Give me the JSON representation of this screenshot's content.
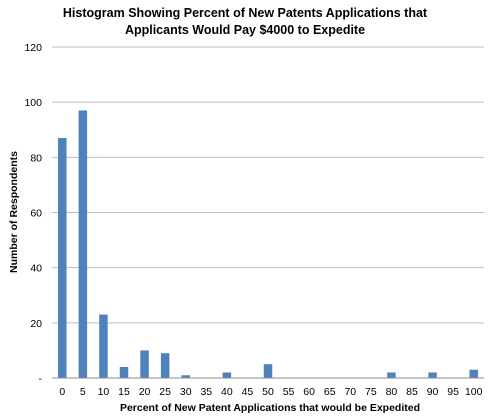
{
  "chart_data": {
    "type": "bar",
    "title_lines": [
      "Histogram Showing Percent of New Patents Applications that",
      "Applicants Would Pay $4000 to Expedite"
    ],
    "xlabel": "Percent of New Patent Applications that would be Expedited",
    "ylabel": "Number of Respondents",
    "categories": [
      "0",
      "5",
      "10",
      "15",
      "20",
      "25",
      "30",
      "35",
      "40",
      "45",
      "50",
      "55",
      "60",
      "65",
      "70",
      "75",
      "80",
      "85",
      "90",
      "95",
      "100"
    ],
    "values": [
      87,
      97,
      23,
      4,
      10,
      9,
      1,
      0,
      2,
      0,
      5,
      0,
      0,
      0,
      0,
      0,
      2,
      0,
      2,
      0,
      3
    ],
    "ylim": [
      0,
      120
    ],
    "yticks": [
      "-",
      "20",
      "40",
      "60",
      "80",
      "100",
      "120"
    ],
    "grid": true,
    "legend": "none",
    "bar_color": "#4f81bd",
    "grid_color": "#bfbfbf"
  }
}
